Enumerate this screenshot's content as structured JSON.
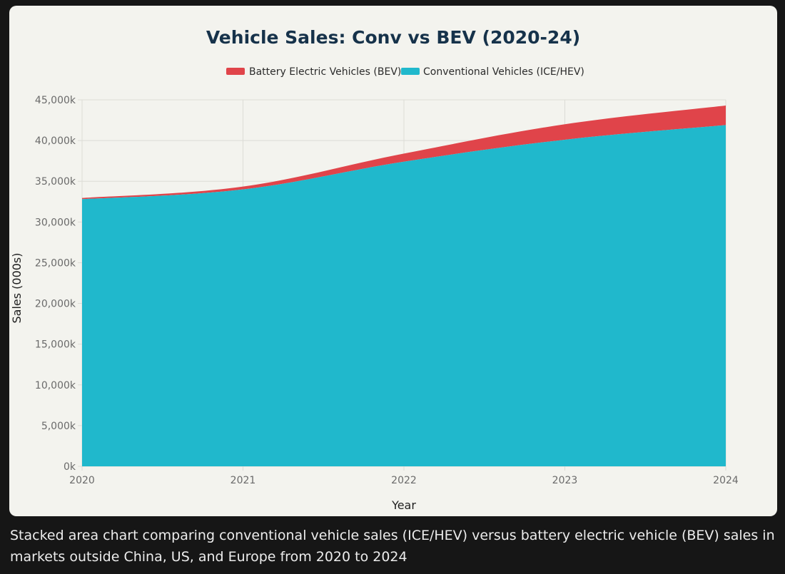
{
  "caption": "Stacked area chart comparing conventional vehicle sales (ICE/HEV) versus battery electric vehicle (BEV) sales in markets outside China, US, and Europe from 2020 to 2024",
  "colors": {
    "bev": "#e0444a",
    "conventional": "#20b8cc",
    "grid": "#dcdcd6",
    "background": "#f3f3ee"
  },
  "chart_data": {
    "type": "area",
    "stacked": true,
    "title": "Vehicle Sales: Conv vs BEV (2020-24)",
    "xlabel": "Year",
    "ylabel": "Sales (000s)",
    "x": [
      "2020",
      "2021",
      "2022",
      "2023",
      "2024"
    ],
    "ylim": [
      0,
      45000
    ],
    "yticks": [
      0,
      5000,
      10000,
      15000,
      20000,
      25000,
      30000,
      35000,
      40000,
      45000
    ],
    "ytick_labels": [
      "0k",
      "5,000k",
      "10,000k",
      "15,000k",
      "20,000k",
      "25,000k",
      "30,000k",
      "35,000k",
      "40,000k",
      "45,000k"
    ],
    "grid": true,
    "legend_position": "top-center",
    "series": [
      {
        "name": "Battery Electric Vehicles (BEV)",
        "values": [
          150,
          350,
          1000,
          1900,
          2400
        ]
      },
      {
        "name": "Conventional Vehicles (ICE/HEV)",
        "values": [
          32800,
          34000,
          37400,
          40100,
          41900
        ]
      }
    ]
  }
}
